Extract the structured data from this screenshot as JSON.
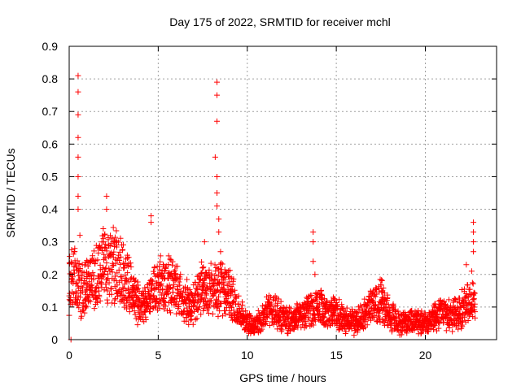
{
  "chart_data": {
    "type": "scatter",
    "title": "Day 175 of 2022, SRMTID for receiver mchl",
    "xlabel": "GPS time / hours",
    "ylabel": "SRMTID / TECUs",
    "xlim": [
      0,
      24
    ],
    "ylim": [
      0,
      0.9
    ],
    "xticks": [
      0,
      5,
      10,
      15,
      20
    ],
    "xtick_labels": [
      "0",
      "5",
      "10",
      "15",
      "20"
    ],
    "yticks": [
      0,
      0.1,
      0.2,
      0.3,
      0.4,
      0.5,
      0.6,
      0.7,
      0.8,
      0.9
    ],
    "ytick_labels": [
      "0",
      "0.1",
      "0.2",
      "0.3",
      "0.4",
      "0.5",
      "0.6",
      "0.7",
      "0.8",
      "0.9"
    ],
    "grid": true,
    "marker": "+",
    "color": "#ff0000",
    "series": [
      {
        "name": "SRMTID",
        "profile": [
          [
            0.0,
            0.17
          ],
          [
            0.3,
            0.19
          ],
          [
            0.6,
            0.14
          ],
          [
            1.0,
            0.16
          ],
          [
            1.5,
            0.19
          ],
          [
            2.0,
            0.23
          ],
          [
            2.5,
            0.22
          ],
          [
            3.0,
            0.2
          ],
          [
            3.5,
            0.15
          ],
          [
            4.0,
            0.1
          ],
          [
            4.5,
            0.12
          ],
          [
            5.0,
            0.16
          ],
          [
            5.5,
            0.17
          ],
          [
            6.0,
            0.15
          ],
          [
            6.5,
            0.12
          ],
          [
            7.0,
            0.11
          ],
          [
            7.5,
            0.16
          ],
          [
            8.0,
            0.15
          ],
          [
            8.5,
            0.16
          ],
          [
            9.0,
            0.14
          ],
          [
            9.5,
            0.09
          ],
          [
            10.0,
            0.05
          ],
          [
            10.5,
            0.04
          ],
          [
            11.0,
            0.08
          ],
          [
            11.5,
            0.09
          ],
          [
            12.0,
            0.07
          ],
          [
            12.5,
            0.06
          ],
          [
            13.0,
            0.07
          ],
          [
            13.5,
            0.09
          ],
          [
            14.0,
            0.1
          ],
          [
            14.5,
            0.08
          ],
          [
            15.0,
            0.08
          ],
          [
            15.5,
            0.06
          ],
          [
            16.0,
            0.05
          ],
          [
            16.5,
            0.07
          ],
          [
            17.0,
            0.1
          ],
          [
            17.5,
            0.12
          ],
          [
            18.0,
            0.08
          ],
          [
            18.5,
            0.05
          ],
          [
            19.0,
            0.05
          ],
          [
            19.5,
            0.06
          ],
          [
            20.0,
            0.05
          ],
          [
            20.5,
            0.07
          ],
          [
            21.0,
            0.08
          ],
          [
            21.5,
            0.08
          ],
          [
            22.0,
            0.09
          ],
          [
            22.5,
            0.12
          ],
          [
            22.8,
            0.11
          ]
        ],
        "spikes": [
          [
            0.1,
            0.0
          ],
          [
            0.5,
            0.81
          ],
          [
            0.5,
            0.76
          ],
          [
            0.5,
            0.69
          ],
          [
            0.5,
            0.62
          ],
          [
            0.5,
            0.56
          ],
          [
            0.5,
            0.5
          ],
          [
            0.5,
            0.44
          ],
          [
            0.5,
            0.4
          ],
          [
            0.6,
            0.32
          ],
          [
            2.1,
            0.44
          ],
          [
            2.1,
            0.4
          ],
          [
            4.6,
            0.38
          ],
          [
            4.6,
            0.36
          ],
          [
            7.6,
            0.3
          ],
          [
            8.3,
            0.79
          ],
          [
            8.3,
            0.75
          ],
          [
            8.3,
            0.67
          ],
          [
            8.2,
            0.56
          ],
          [
            8.3,
            0.5
          ],
          [
            8.3,
            0.45
          ],
          [
            8.3,
            0.41
          ],
          [
            8.4,
            0.37
          ],
          [
            8.4,
            0.33
          ],
          [
            8.5,
            0.27
          ],
          [
            13.7,
            0.33
          ],
          [
            13.7,
            0.3
          ],
          [
            13.7,
            0.24
          ],
          [
            13.8,
            0.2
          ],
          [
            22.7,
            0.36
          ],
          [
            22.7,
            0.33
          ],
          [
            22.7,
            0.3
          ],
          [
            22.7,
            0.27
          ],
          [
            22.3,
            0.23
          ],
          [
            22.6,
            0.21
          ]
        ]
      }
    ]
  }
}
